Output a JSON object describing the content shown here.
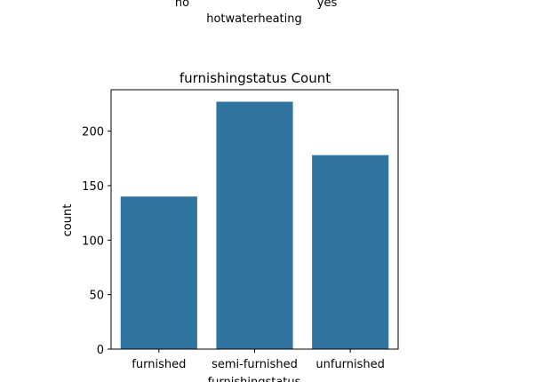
{
  "previous_chart_fragment": {
    "tick_labels": [
      "no",
      "yes"
    ],
    "xlabel": "hotwaterheating"
  },
  "chart_data": {
    "type": "bar",
    "title": "furnishingstatus Count",
    "xlabel": "furnishingstatus",
    "ylabel": "count",
    "categories": [
      "furnished",
      "semi-furnished",
      "unfurnished"
    ],
    "values": [
      140,
      227,
      178
    ],
    "ylim": [
      0,
      238
    ],
    "yticks": [
      0,
      50,
      100,
      150,
      200
    ],
    "grid": false,
    "bar_color": "#3274a1"
  }
}
